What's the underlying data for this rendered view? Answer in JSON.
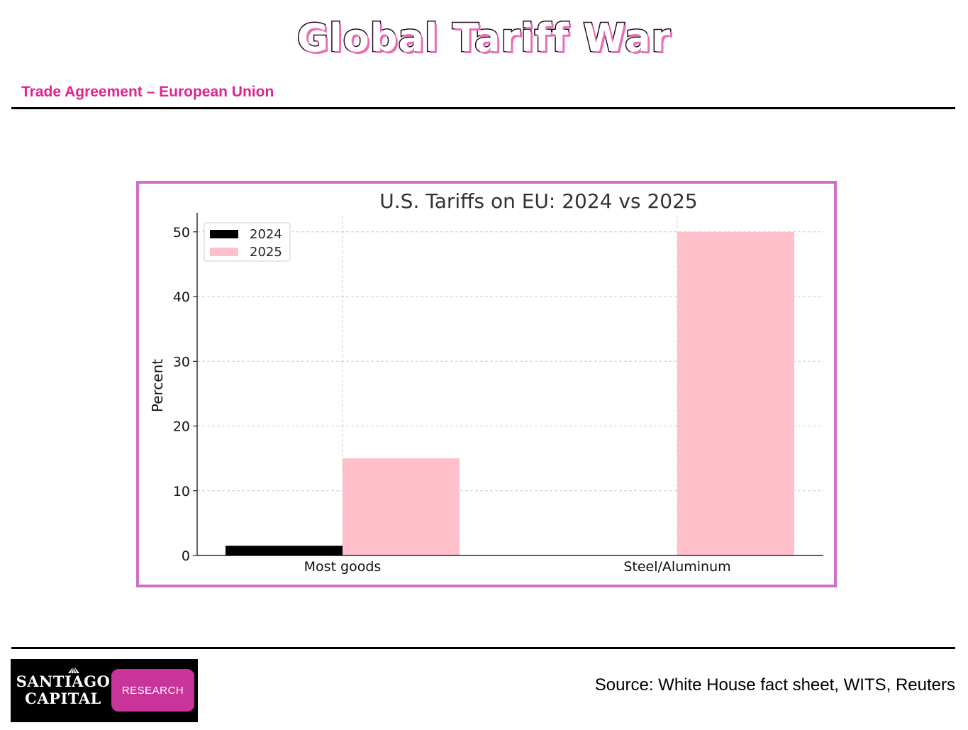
{
  "header": {
    "title": "Global Tariff War",
    "subtitle": "Trade Agreement – European Union"
  },
  "footer": {
    "logo_line1": "SANTIAGO",
    "logo_line2": "CAPITAL",
    "logo_badge": "RESEARCH",
    "source": "Source: White House fact sheet, WITS, Reuters"
  },
  "colors": {
    "accent": "#e0238f",
    "frame": "#d070c8",
    "series_2024": "#000000",
    "series_2025": "#ffc0cb"
  },
  "chart_data": {
    "type": "bar",
    "title": "U.S. Tariffs on EU: 2024 vs 2025",
    "xlabel": "",
    "ylabel": "Percent",
    "categories": [
      "Most goods",
      "Steel/Aluminum"
    ],
    "series": [
      {
        "name": "2024",
        "values": [
          1.5,
          0
        ],
        "color": "#000000"
      },
      {
        "name": "2025",
        "values": [
          15,
          50
        ],
        "color": "#ffc0cb"
      }
    ],
    "ylim": [
      0,
      52.5
    ],
    "yticks": [
      0,
      10,
      20,
      30,
      40,
      50
    ],
    "grid": true,
    "legend": "top-left"
  }
}
